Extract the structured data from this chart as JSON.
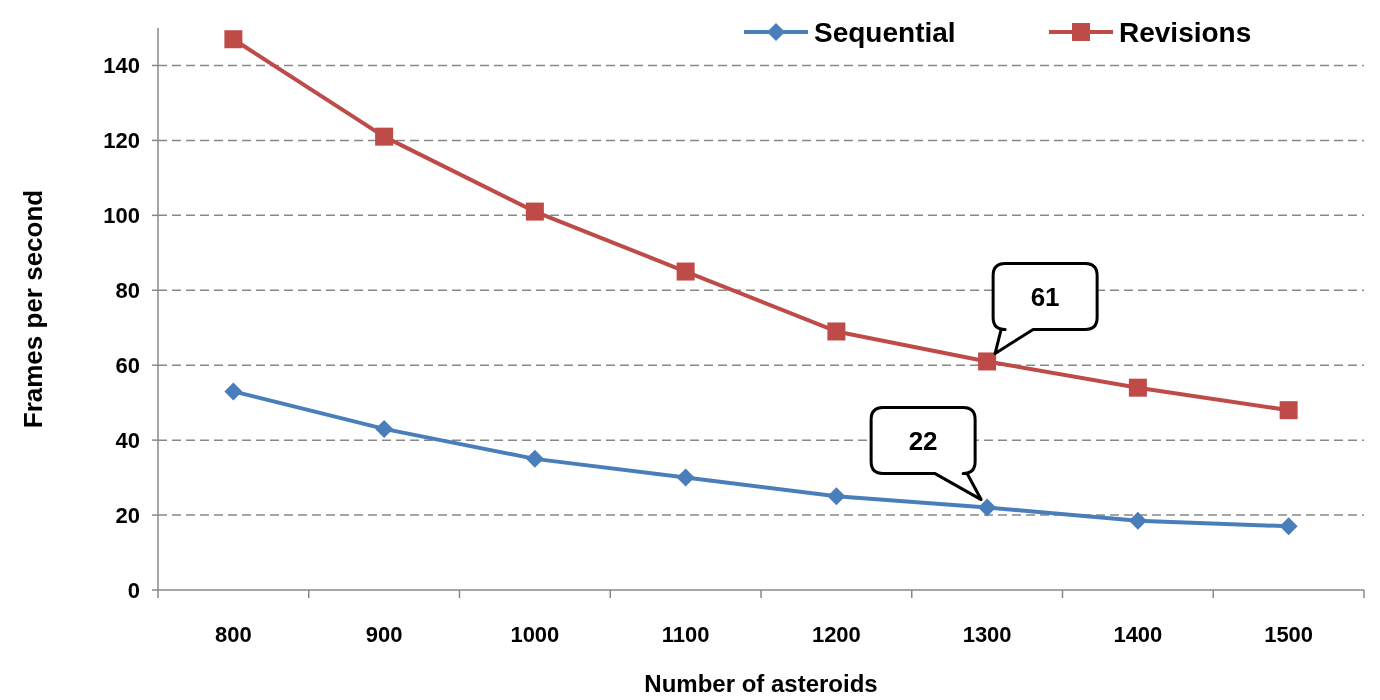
{
  "chart_data": {
    "type": "line",
    "xlabel": "Number of asteroids",
    "ylabel": "Frames per second",
    "categories": [
      "800",
      "900",
      "1000",
      "1100",
      "1200",
      "1300",
      "1400",
      "1500"
    ],
    "series": [
      {
        "name": "Sequential",
        "color": "#4a7ebb",
        "marker": "diamond",
        "values": [
          53,
          43,
          35,
          30,
          25,
          22,
          18.5,
          17
        ]
      },
      {
        "name": "Revisions",
        "color": "#be4b48",
        "marker": "square",
        "values": [
          147,
          121,
          101,
          85,
          69,
          61,
          54,
          48
        ]
      }
    ],
    "ylim": [
      0,
      150
    ],
    "yticks": [
      0,
      20,
      40,
      60,
      80,
      100,
      120,
      140
    ],
    "grid": "y",
    "legend": "top right",
    "annotations": [
      {
        "text": "61",
        "x": "1300",
        "y": 61
      },
      {
        "text": "22",
        "x": "1300",
        "y": 22
      }
    ]
  }
}
